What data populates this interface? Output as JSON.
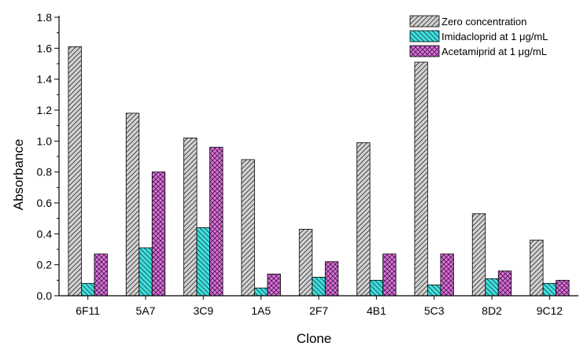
{
  "chart_data": {
    "type": "bar",
    "title": "",
    "xlabel": "Clone",
    "ylabel": "Absorbance",
    "ylim": [
      0,
      1.8
    ],
    "yticks": [
      0.0,
      0.2,
      0.4,
      0.6,
      0.8,
      1.0,
      1.2,
      1.4,
      1.6,
      1.8
    ],
    "ytick_labels": [
      "0.0",
      "0.2",
      "0.4",
      "0.6",
      "0.8",
      "1.0",
      "1.2",
      "1.4",
      "1.6",
      "1.8"
    ],
    "grid": false,
    "legend_position": "top-right",
    "categories": [
      "6F11",
      "5A7",
      "3C9",
      "1A5",
      "2F7",
      "4B1",
      "5C3",
      "8D2",
      "9C12"
    ],
    "series": [
      {
        "name": "Zero concentration",
        "pattern": "diagonal-hatch",
        "color": "#d3d3d3",
        "values": [
          1.61,
          1.18,
          1.02,
          0.88,
          0.43,
          0.99,
          1.51,
          0.53,
          0.36
        ]
      },
      {
        "name": "Imidacloprid at 1 μg/mL",
        "pattern": "diagonal-hatch",
        "color": "#40e0e0",
        "values": [
          0.08,
          0.31,
          0.44,
          0.05,
          0.12,
          0.1,
          0.07,
          0.11,
          0.08
        ]
      },
      {
        "name": "Acetamiprid at 1 μg/mL",
        "pattern": "cross-hatch",
        "color": "#e070e0",
        "values": [
          0.27,
          0.8,
          0.96,
          0.14,
          0.22,
          0.27,
          0.27,
          0.16,
          0.1
        ]
      }
    ]
  }
}
